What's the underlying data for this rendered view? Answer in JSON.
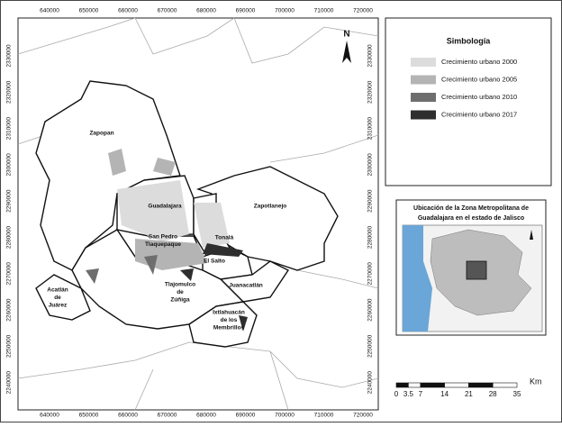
{
  "map": {
    "x_ticks": [
      "640000",
      "650000",
      "660000",
      "670000",
      "680000",
      "690000",
      "700000",
      "710000",
      "720000"
    ],
    "y_ticks": [
      "2330000",
      "2320000",
      "2310000",
      "2300000",
      "2290000",
      "2280000",
      "2270000",
      "2260000",
      "2250000",
      "2240000"
    ],
    "north": "N",
    "places": [
      {
        "lines": [
          "Zapopan"
        ]
      },
      {
        "lines": [
          "Guadalajara"
        ]
      },
      {
        "lines": [
          "Zapotlanejo"
        ]
      },
      {
        "lines": [
          "Tonalá"
        ]
      },
      {
        "lines": [
          "San Pedro",
          "Tlaquepaque"
        ]
      },
      {
        "lines": [
          "El Salto"
        ]
      },
      {
        "lines": [
          "Juanacatlán"
        ]
      },
      {
        "lines": [
          "Tlajomulco",
          "de",
          "Zúñiga"
        ]
      },
      {
        "lines": [
          "Acatlán",
          "de",
          "Juárez"
        ]
      },
      {
        "lines": [
          "Ixtlahuacán",
          "de los",
          "Membrillos"
        ]
      }
    ]
  },
  "legend": {
    "title": "Simbología",
    "items": [
      {
        "label": "Crecimiento  urbano 2000",
        "color": "#dcdcdc"
      },
      {
        "label": "Crecimiento  urbano 2005",
        "color": "#b4b4b4"
      },
      {
        "label": "Crecimiento  urbano 2010",
        "color": "#6e6e6e"
      },
      {
        "label": "Crecimiento  urbano 2017",
        "color": "#2e2e2e"
      }
    ]
  },
  "inset": {
    "title_lines": [
      "Ubicación de la Zona Metropolitana de",
      "Guadalajara  en  el  estado  de  Jalisco"
    ]
  },
  "scale": {
    "unit": "Km",
    "labels": [
      "0",
      "3.5",
      "7",
      "14",
      "21",
      "28",
      "35"
    ]
  }
}
